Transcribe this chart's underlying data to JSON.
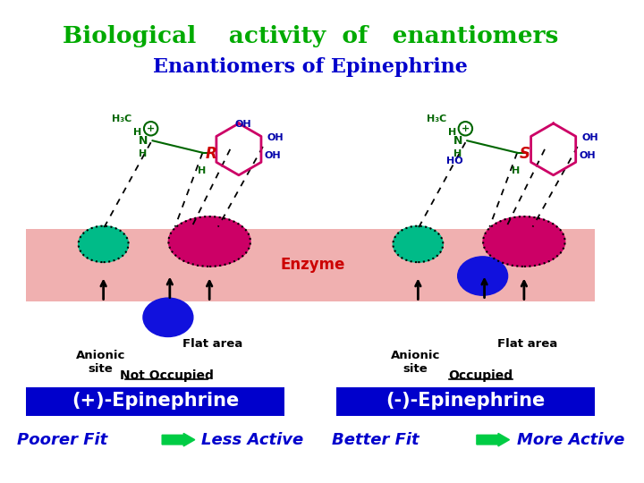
{
  "title": "Biological    activity  of   enantiomers",
  "subtitle": "Enantiomers of Epinephrine",
  "title_color": "#00aa00",
  "subtitle_color": "#0000cc",
  "bg_color": "#ffffff",
  "enzyme_band_color": "#f0b0b0",
  "enzyme_label": "Enzyme",
  "left_label": "(+)-Epinephrine",
  "right_label": "(-)-Epinephrine",
  "left_fit": "Poorer Fit",
  "left_active": "Less Active",
  "right_fit": "Better Fit",
  "right_active": "More Active",
  "left_occupied": "Not Occupied",
  "right_occupied": "Occupied",
  "label_bg_color": "#0000cc",
  "label_text_color": "#ffffff",
  "fit_text_color": "#0000cc",
  "anionic_label": "Anionic\nsite",
  "flat_label": "Flat area",
  "R_label": "R",
  "S_label": "S",
  "green_color": "#00bb88",
  "pink_color": "#cc0066",
  "blue_color": "#1111dd",
  "bond_color": "#006600",
  "oh_color": "#0000aa",
  "arrow_color": "#00cc44"
}
